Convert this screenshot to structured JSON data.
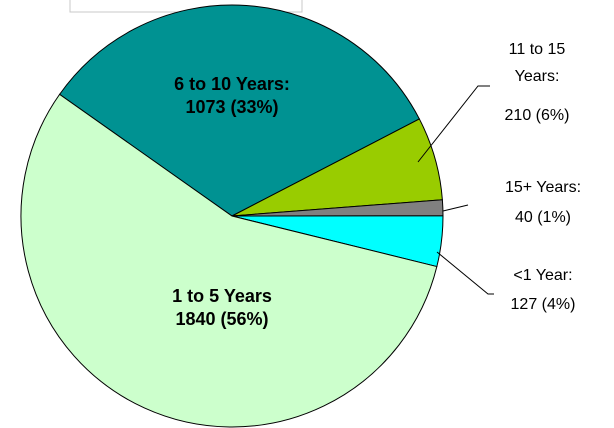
{
  "chart_data": {
    "type": "pie",
    "categories": [
      "6 to 10 Years:",
      "11 to 15 Years:",
      "15+ Years:",
      "<1 Year:",
      "1 to 5 Years"
    ],
    "values": [
      1073,
      210,
      40,
      127,
      1840
    ],
    "value_labels": [
      "1073 (33%)",
      "210 (6%)",
      "40 (1%)",
      "127 (4%)",
      "1840 (56%)"
    ],
    "colors": [
      "#009292",
      "#99cc00",
      "#808080",
      "#00ffff",
      "#ccffcc"
    ]
  }
}
